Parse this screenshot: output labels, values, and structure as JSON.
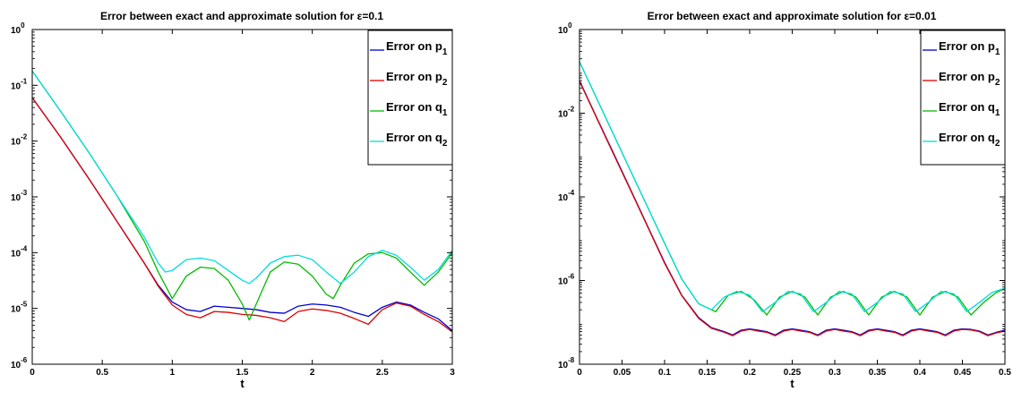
{
  "chart_data": [
    {
      "type": "line",
      "title": "Error between exact and approximate solution for ε=0.1",
      "xlabel": "t",
      "ylabel": "",
      "xlim": [
        0,
        3
      ],
      "ylim": [
        1e-06,
        1
      ],
      "yscale": "log",
      "xticks": [
        0,
        0.5,
        1,
        1.5,
        2,
        2.5,
        3
      ],
      "xtick_labels": [
        "0",
        "0.5",
        "1",
        "1.5",
        "2",
        "2.5",
        "3"
      ],
      "yticks": [
        1e-06,
        1e-05,
        0.0001,
        0.001,
        0.01,
        0.1,
        1
      ],
      "ytick_labels": [
        [
          "10",
          "-6"
        ],
        [
          "10",
          "-5"
        ],
        [
          "10",
          "-4"
        ],
        [
          "10",
          "-3"
        ],
        [
          "10",
          "-2"
        ],
        [
          "10",
          "-1"
        ],
        [
          "10",
          "0"
        ]
      ],
      "legend_position": "top-right",
      "grid": false,
      "series": [
        {
          "name": "Error on p",
          "sub": "1",
          "color": "#0000cc",
          "x": [
            0,
            0.2,
            0.4,
            0.6,
            0.8,
            0.9,
            1.0,
            1.1,
            1.2,
            1.3,
            1.4,
            1.5,
            1.6,
            1.7,
            1.8,
            1.9,
            2.0,
            2.1,
            2.2,
            2.3,
            2.4,
            2.5,
            2.6,
            2.7,
            2.8,
            2.9,
            3.0
          ],
          "y": [
            0.06,
            0.012,
            0.0022,
            0.00038,
            6.5e-05,
            2.6e-05,
            1.3e-05,
            9.5e-06,
            8.8e-06,
            1.1e-05,
            1.05e-05,
            1e-05,
            9.5e-06,
            8.5e-06,
            8.2e-06,
            1.1e-05,
            1.2e-05,
            1.15e-05,
            1.05e-05,
            8.5e-06,
            7.2e-06,
            1.05e-05,
            1.3e-05,
            1.15e-05,
            8.5e-06,
            6.5e-06,
            4e-06
          ]
        },
        {
          "name": "Error on p",
          "sub": "2",
          "color": "#dd0000",
          "x": [
            0,
            0.2,
            0.4,
            0.6,
            0.8,
            0.9,
            1.0,
            1.1,
            1.2,
            1.3,
            1.4,
            1.5,
            1.6,
            1.7,
            1.8,
            1.9,
            2.0,
            2.1,
            2.2,
            2.3,
            2.4,
            2.5,
            2.6,
            2.7,
            2.8,
            2.9,
            3.0
          ],
          "y": [
            0.06,
            0.012,
            0.0022,
            0.00038,
            6.5e-05,
            2.5e-05,
            1.15e-05,
            7.8e-06,
            6.8e-06,
            8.8e-06,
            8.5e-06,
            7.8e-06,
            7.5e-06,
            6.8e-06,
            5.8e-06,
            8.8e-06,
            9.8e-06,
            9.2e-06,
            8.2e-06,
            6.6e-06,
            5.2e-06,
            9.5e-06,
            1.25e-05,
            1.1e-05,
            7.8e-06,
            5.8e-06,
            3.8e-06
          ]
        },
        {
          "name": "Error on q",
          "sub": "1",
          "color": "#00bb00",
          "x": [
            0,
            0.2,
            0.4,
            0.6,
            0.8,
            0.9,
            1.0,
            1.1,
            1.2,
            1.3,
            1.4,
            1.5,
            1.55,
            1.6,
            1.7,
            1.8,
            1.9,
            2.0,
            2.1,
            2.15,
            2.2,
            2.3,
            2.4,
            2.5,
            2.6,
            2.7,
            2.8,
            2.9,
            3.0
          ],
          "y": [
            0.18,
            0.035,
            0.0065,
            0.0011,
            0.00016,
            4.5e-05,
            1.5e-05,
            3.8e-05,
            5.5e-05,
            5.2e-05,
            3.2e-05,
            1.2e-05,
            6.2e-06,
            1.2e-05,
            4.5e-05,
            6.8e-05,
            6.2e-05,
            3.8e-05,
            1.8e-05,
            1.5e-05,
            2.6e-05,
            6.5e-05,
            9.5e-05,
            0.0001,
            8e-05,
            4.5e-05,
            2.6e-05,
            4.5e-05,
            0.0001
          ]
        },
        {
          "name": "Error on q",
          "sub": "2",
          "color": "#00dddd",
          "x": [
            0,
            0.2,
            0.4,
            0.6,
            0.8,
            0.9,
            0.95,
            1.0,
            1.1,
            1.2,
            1.3,
            1.4,
            1.5,
            1.55,
            1.6,
            1.7,
            1.8,
            1.9,
            2.0,
            2.1,
            2.2,
            2.3,
            2.4,
            2.5,
            2.6,
            2.7,
            2.8,
            2.9,
            3.0
          ],
          "y": [
            0.18,
            0.035,
            0.0065,
            0.0011,
            0.00019,
            6.5e-05,
            4.5e-05,
            4.8e-05,
            7.5e-05,
            8e-05,
            7.2e-05,
            4.8e-05,
            3.2e-05,
            2.8e-05,
            3.5e-05,
            6.5e-05,
            8.5e-05,
            9e-05,
            7.5e-05,
            4.5e-05,
            2.8e-05,
            4.5e-05,
            8.5e-05,
            0.00011,
            9e-05,
            5.5e-05,
            3.2e-05,
            5e-05,
            0.00011
          ]
        }
      ]
    },
    {
      "type": "line",
      "title": "Error between exact and approximate solution for ε=0.01",
      "xlabel": "t",
      "ylabel": "",
      "xlim": [
        0,
        0.5
      ],
      "ylim": [
        1e-08,
        1
      ],
      "yscale": "log",
      "xticks": [
        0,
        0.05,
        0.1,
        0.15,
        0.2,
        0.25,
        0.3,
        0.35,
        0.4,
        0.45,
        0.5
      ],
      "xtick_labels": [
        "0",
        "0.05",
        "0.1",
        "0.15",
        "0.2",
        "0.25",
        "0.3",
        "0.35",
        "0.4",
        "0.45",
        "0.5"
      ],
      "yticks": [
        1e-08,
        1e-06,
        0.0001,
        0.01,
        1
      ],
      "ytick_labels": [
        [
          "10",
          "-8"
        ],
        [
          "10",
          "-6"
        ],
        [
          "10",
          "-4"
        ],
        [
          "10",
          "-2"
        ],
        [
          "10",
          "0"
        ]
      ],
      "legend_position": "top-right",
      "grid": false,
      "series": [
        {
          "name": "Error on p",
          "sub": "1",
          "color": "#0000cc",
          "x": [
            0,
            0.02,
            0.04,
            0.06,
            0.08,
            0.1,
            0.12,
            0.14,
            0.155,
            0.17,
            0.18,
            0.19,
            0.2,
            0.21,
            0.22,
            0.23,
            0.24,
            0.25,
            0.26,
            0.27,
            0.28,
            0.29,
            0.3,
            0.31,
            0.32,
            0.33,
            0.34,
            0.35,
            0.36,
            0.37,
            0.38,
            0.39,
            0.4,
            0.41,
            0.42,
            0.43,
            0.44,
            0.45,
            0.46,
            0.47,
            0.48,
            0.49,
            0.5
          ],
          "y": [
            0.06,
            0.008,
            0.0011,
            0.00015,
            2e-05,
            2.7e-06,
            4.5e-07,
            1.3e-07,
            7.5e-08,
            6e-08,
            5e-08,
            6.5e-08,
            7e-08,
            6.5e-08,
            6e-08,
            5e-08,
            6.5e-08,
            7e-08,
            6.5e-08,
            6e-08,
            5e-08,
            6.5e-08,
            7e-08,
            6.5e-08,
            6e-08,
            5e-08,
            6.5e-08,
            7e-08,
            6.5e-08,
            6e-08,
            5e-08,
            6.5e-08,
            7e-08,
            6.5e-08,
            6e-08,
            5e-08,
            6.5e-08,
            7e-08,
            6.8e-08,
            6.2e-08,
            5e-08,
            5.8e-08,
            6.5e-08
          ]
        },
        {
          "name": "Error on p",
          "sub": "2",
          "color": "#dd0000",
          "x": [
            0,
            0.02,
            0.04,
            0.06,
            0.08,
            0.1,
            0.12,
            0.14,
            0.155,
            0.17,
            0.18,
            0.19,
            0.2,
            0.21,
            0.22,
            0.23,
            0.24,
            0.25,
            0.26,
            0.27,
            0.28,
            0.29,
            0.3,
            0.31,
            0.32,
            0.33,
            0.34,
            0.35,
            0.36,
            0.37,
            0.38,
            0.39,
            0.4,
            0.41,
            0.42,
            0.43,
            0.44,
            0.45,
            0.46,
            0.47,
            0.48,
            0.49,
            0.5
          ],
          "y": [
            0.058,
            0.0078,
            0.00105,
            0.000145,
            1.95e-05,
            2.6e-06,
            4.4e-07,
            1.25e-07,
            7.2e-08,
            5.8e-08,
            4.8e-08,
            6.2e-08,
            6.8e-08,
            6.2e-08,
            5.8e-08,
            4.8e-08,
            6.2e-08,
            6.8e-08,
            6.2e-08,
            5.8e-08,
            4.8e-08,
            6.2e-08,
            6.8e-08,
            6.2e-08,
            5.8e-08,
            4.8e-08,
            6.2e-08,
            6.8e-08,
            6.2e-08,
            5.8e-08,
            4.8e-08,
            6.2e-08,
            6.8e-08,
            6.2e-08,
            5.8e-08,
            4.8e-08,
            6.2e-08,
            6.8e-08,
            6.6e-08,
            6e-08,
            4.8e-08,
            5.6e-08,
            6.2e-08
          ]
        },
        {
          "name": "Error on q",
          "sub": "1",
          "color": "#00bb00",
          "x": [
            0,
            0.02,
            0.04,
            0.06,
            0.08,
            0.1,
            0.12,
            0.14,
            0.16,
            0.175,
            0.19,
            0.205,
            0.22,
            0.235,
            0.25,
            0.265,
            0.28,
            0.295,
            0.31,
            0.325,
            0.34,
            0.355,
            0.37,
            0.385,
            0.4,
            0.415,
            0.43,
            0.445,
            0.46,
            0.475,
            0.49,
            0.5
          ],
          "y": [
            0.17,
            0.023,
            0.0031,
            0.00042,
            5.7e-05,
            7.8e-06,
            1.1e-06,
            2.8e-07,
            1.8e-07,
            4.5e-07,
            5.5e-07,
            3.5e-07,
            1.5e-07,
            4e-07,
            5.5e-07,
            4e-07,
            1.5e-07,
            4e-07,
            5.5e-07,
            4e-07,
            1.5e-07,
            4e-07,
            5.5e-07,
            4e-07,
            1.5e-07,
            4e-07,
            5.5e-07,
            4e-07,
            1.5e-07,
            3e-07,
            5.2e-07,
            6.5e-07
          ]
        },
        {
          "name": "Error on q",
          "sub": "2",
          "color": "#00dddd",
          "x": [
            0,
            0.02,
            0.04,
            0.06,
            0.08,
            0.1,
            0.12,
            0.14,
            0.155,
            0.17,
            0.185,
            0.2,
            0.215,
            0.23,
            0.245,
            0.26,
            0.275,
            0.29,
            0.305,
            0.32,
            0.335,
            0.35,
            0.365,
            0.38,
            0.395,
            0.41,
            0.425,
            0.44,
            0.455,
            0.47,
            0.485,
            0.5
          ],
          "y": [
            0.17,
            0.023,
            0.0031,
            0.00042,
            5.7e-05,
            7.8e-06,
            1.1e-06,
            2.8e-07,
            2e-07,
            4e-07,
            5.5e-07,
            4.5e-07,
            1.8e-07,
            3e-07,
            5.5e-07,
            4.8e-07,
            1.8e-07,
            3e-07,
            5.5e-07,
            4.8e-07,
            1.8e-07,
            3e-07,
            5.5e-07,
            4.8e-07,
            1.8e-07,
            3e-07,
            5.5e-07,
            4.8e-07,
            1.8e-07,
            3e-07,
            5.2e-07,
            6.6e-07
          ]
        }
      ]
    }
  ]
}
